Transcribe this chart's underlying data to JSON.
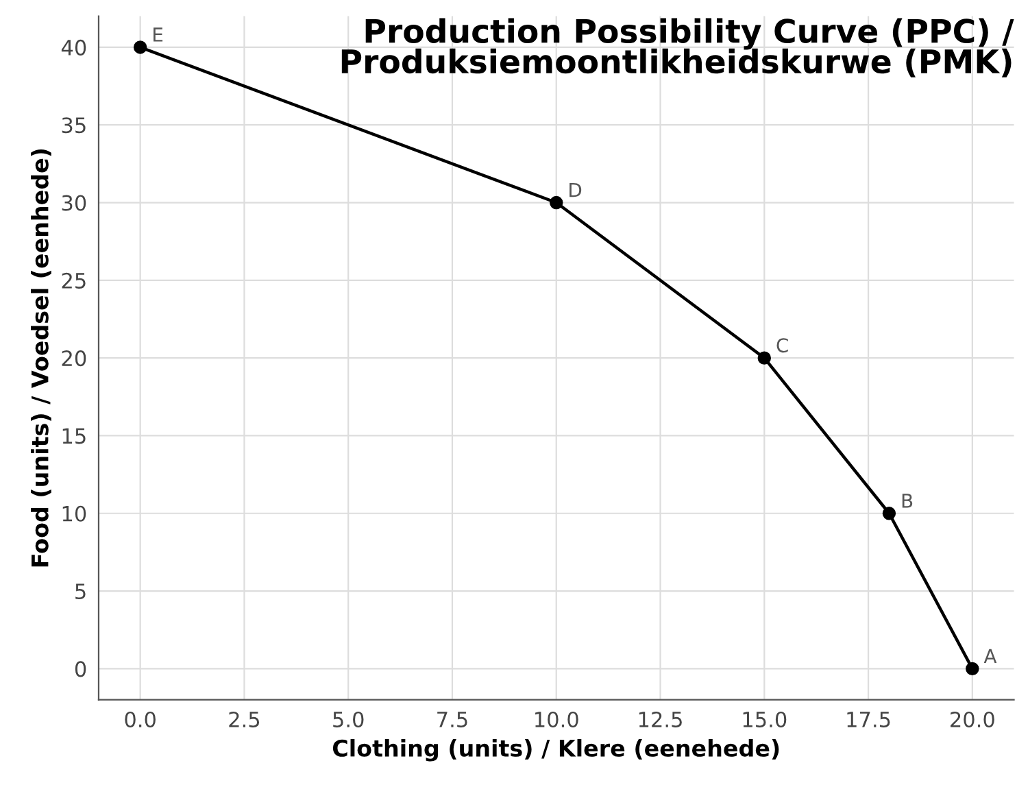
{
  "chart_data": {
    "type": "line",
    "title": "Production Possibility Curve (PPC) /\nProduksiemoontlikheidskurwe (PMK)",
    "xlabel": "Clothing (units) / Klere (eenehede)",
    "ylabel": "Food (units) / Voedsel (eenhede)",
    "x": [
      20,
      18,
      15,
      10,
      0
    ],
    "series": [
      {
        "color": "#000000",
        "values": [
          0,
          10,
          20,
          30,
          40
        ]
      }
    ],
    "marker": "circle",
    "line_style": "solid",
    "grid": true,
    "xlim": [
      -1,
      21
    ],
    "ylim": [
      -2,
      42
    ],
    "xticks": [
      {
        "value": 0,
        "label": "0.0"
      },
      2.5,
      {
        "value": 5,
        "label": "5.0"
      },
      7.5,
      {
        "value": 10,
        "label": "10.0"
      },
      12.5,
      {
        "value": 15,
        "label": "15.0"
      },
      17.5,
      {
        "value": 20,
        "label": "20.0"
      }
    ],
    "yticks": [
      0,
      5,
      10,
      15,
      20,
      25,
      30,
      35,
      40
    ],
    "annotations": [
      {
        "text": "A",
        "x": 20,
        "y": 0
      },
      {
        "text": "B",
        "x": 18,
        "y": 10
      },
      {
        "text": "C",
        "x": 15,
        "y": 20
      },
      {
        "text": "D",
        "x": 10,
        "y": 30
      },
      {
        "text": "E",
        "x": 0,
        "y": 40
      }
    ]
  }
}
